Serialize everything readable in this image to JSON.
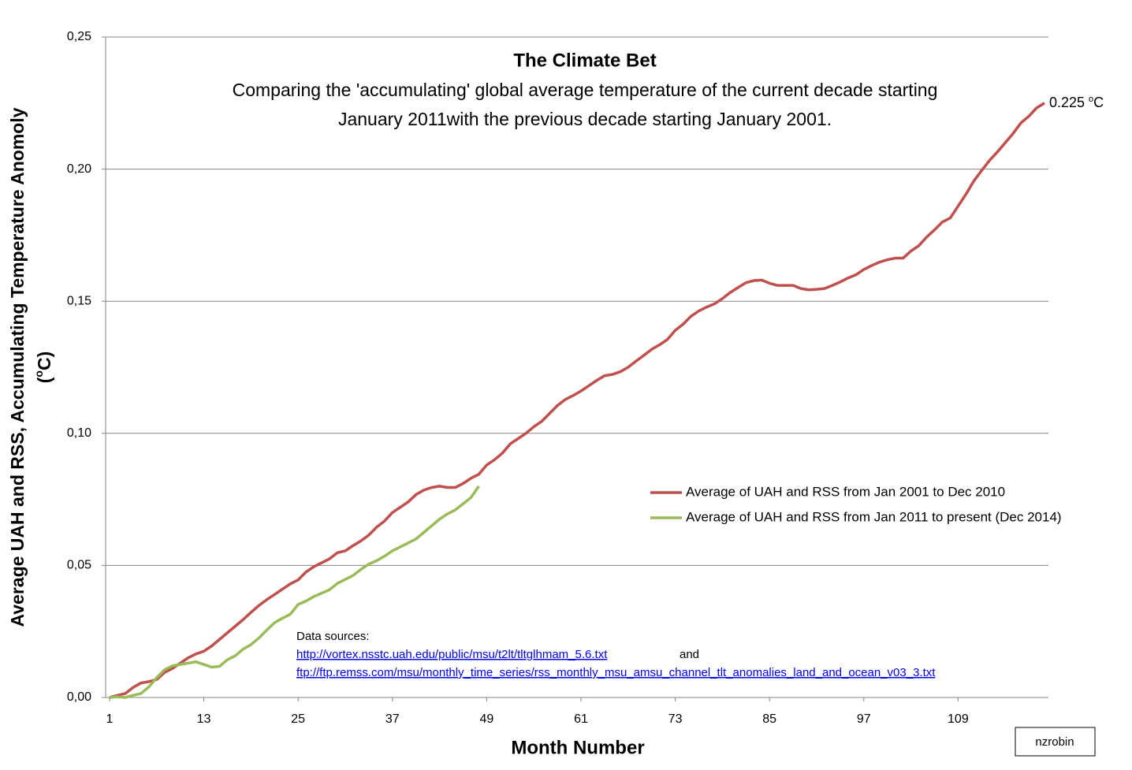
{
  "chart_data": {
    "type": "line",
    "title": "The Climate Bet",
    "subtitle": [
      "Comparing the 'accumulating' global average temperature of the current decade starting",
      "January 2011with the previous decade starting January 2001."
    ],
    "xlabel": "Month Number",
    "ylabel": "Average UAH and RSS, Accumulating Temperature Anomoly",
    "ylabel_unit": {
      "open": "(",
      "sup": "o",
      "close": "C)"
    },
    "end_label": {
      "text": "0.225",
      "sup": "o",
      "unit": "C"
    },
    "sources": {
      "heading": "Data sources:",
      "link1": "http://vortex.nsstc.uah.edu/public/msu/t2lt/tltglhmam_5.6.txt",
      "joiner": "and",
      "link2": "ftp://ftp.remss.com/msu/monthly_time_series/rss_monthly_msu_amsu_channel_tlt_anomalies_land_and_ocean_v03_3.txt"
    },
    "credit": "nzrobin",
    "x": [
      1,
      2,
      3,
      4,
      5,
      6,
      7,
      8,
      9,
      10,
      11,
      12,
      13,
      14,
      15,
      16,
      17,
      18,
      19,
      20,
      21,
      22,
      23,
      24,
      25,
      26,
      27,
      28,
      29,
      30,
      31,
      32,
      33,
      34,
      35,
      36,
      37,
      38,
      39,
      40,
      41,
      42,
      43,
      44,
      45,
      46,
      47,
      48,
      49,
      50,
      51,
      52,
      53,
      54,
      55,
      56,
      57,
      58,
      59,
      60,
      61,
      62,
      63,
      64,
      65,
      66,
      67,
      68,
      69,
      70,
      71,
      72,
      73,
      74,
      75,
      76,
      77,
      78,
      79,
      80,
      81,
      82,
      83,
      84,
      85,
      86,
      87,
      88,
      89,
      90,
      91,
      92,
      93,
      94,
      95,
      96,
      97,
      98,
      99,
      100,
      101,
      102,
      103,
      104,
      105,
      106,
      107,
      108,
      109,
      110,
      111,
      112,
      113,
      114,
      115,
      116,
      117,
      118,
      119,
      120
    ],
    "xlim": [
      0.5,
      120.5
    ],
    "xticks": [
      1,
      13,
      25,
      37,
      49,
      61,
      73,
      85,
      97,
      109
    ],
    "ylim": [
      0,
      0.25
    ],
    "yticks": [
      {
        "value": 0,
        "label": "0,00"
      },
      {
        "value": 0.05,
        "label": "0,05"
      },
      {
        "value": 0.1,
        "label": "0,10"
      },
      {
        "value": 0.15,
        "label": "0,15"
      },
      {
        "value": 0.2,
        "label": "0,20"
      },
      {
        "value": 0.25,
        "label": "0,25"
      }
    ],
    "grid": true,
    "series": [
      {
        "name": "Average of UAH and RSS from Jan 2001 to Dec 2010",
        "color": "#c0504d",
        "values": [
          0,
          0.0008,
          0.0015,
          0.0038,
          0.0055,
          0.006,
          0.0068,
          0.0095,
          0.011,
          0.013,
          0.015,
          0.0165,
          0.0175,
          0.0195,
          0.022,
          0.0245,
          0.027,
          0.0295,
          0.0322,
          0.0348,
          0.037,
          0.039,
          0.041,
          0.043,
          0.0445,
          0.0475,
          0.0495,
          0.051,
          0.0525,
          0.0548,
          0.0555,
          0.0575,
          0.0593,
          0.0615,
          0.0645,
          0.0668,
          0.07,
          0.072,
          0.074,
          0.0768,
          0.0785,
          0.0795,
          0.08,
          0.0795,
          0.0795,
          0.081,
          0.083,
          0.0845,
          0.088,
          0.09,
          0.0925,
          0.096,
          0.098,
          0.1,
          0.1025,
          0.1045,
          0.1075,
          0.1105,
          0.1128,
          0.1143,
          0.116,
          0.118,
          0.12,
          0.1218,
          0.1223,
          0.1233,
          0.125,
          0.1273,
          0.1295,
          0.1318,
          0.1335,
          0.1355,
          0.139,
          0.1413,
          0.1443,
          0.1463,
          0.1478,
          0.149,
          0.151,
          0.1533,
          0.1552,
          0.157,
          0.1578,
          0.158,
          0.1568,
          0.156,
          0.156,
          0.156,
          0.1548,
          0.1543,
          0.1545,
          0.1548,
          0.156,
          0.1573,
          0.1588,
          0.16,
          0.162,
          0.1635,
          0.1648,
          0.1657,
          0.1663,
          0.1663,
          0.169,
          0.171,
          0.1743,
          0.177,
          0.18,
          0.1815,
          0.186,
          0.1905,
          0.1955,
          0.1995,
          0.2033,
          0.2065,
          0.21,
          0.2135,
          0.2175,
          0.22,
          0.2232,
          0.225
        ]
      },
      {
        "name": "Average of UAH and RSS from Jan 2011 to present (Dec 2014)",
        "color": "#9bbb59",
        "values": [
          0,
          0.0003,
          0,
          0.0008,
          0.0015,
          0.004,
          0.0075,
          0.0105,
          0.012,
          0.0125,
          0.013,
          0.0135,
          0.0125,
          0.0115,
          0.0118,
          0.0143,
          0.0158,
          0.0183,
          0.02,
          0.0225,
          0.0255,
          0.0283,
          0.03,
          0.0315,
          0.0352,
          0.0365,
          0.0382,
          0.0395,
          0.0408,
          0.0432,
          0.0447,
          0.0462,
          0.0485,
          0.0505,
          0.0518,
          0.0535,
          0.0555,
          0.057,
          0.0585,
          0.06,
          0.0625,
          0.065,
          0.0675,
          0.0695,
          0.071,
          0.0733,
          0.0757,
          0.08,
          null,
          null,
          null,
          null,
          null,
          null,
          null,
          null,
          null,
          null,
          null,
          null,
          null,
          null,
          null,
          null,
          null,
          null,
          null,
          null,
          null,
          null,
          null,
          null,
          null,
          null,
          null,
          null,
          null,
          null,
          null,
          null,
          null,
          null,
          null,
          null,
          null,
          null,
          null,
          null,
          null,
          null,
          null,
          null,
          null,
          null,
          null,
          null,
          null,
          null,
          null,
          null,
          null,
          null,
          null,
          null,
          null,
          null,
          null,
          null,
          null,
          null,
          null,
          null,
          null,
          null,
          null,
          null,
          null,
          null,
          null,
          null
        ]
      }
    ]
  }
}
